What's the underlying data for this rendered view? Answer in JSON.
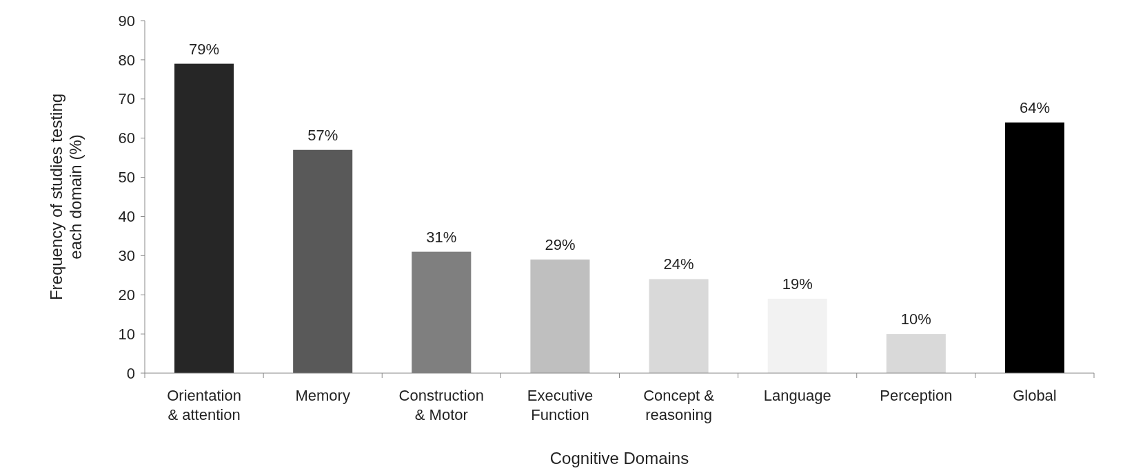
{
  "chart_data": {
    "type": "bar",
    "xlabel": "Cognitive Domains",
    "ylabel": "Frequency of studies testing each domain (%)",
    "categories": [
      "Orientation & attention",
      "Memory",
      "Construction & Motor",
      "Executive Function",
      "Concept & reasoning",
      "Language",
      "Perception",
      "Global"
    ],
    "values": [
      79,
      57,
      31,
      29,
      24,
      19,
      10,
      64
    ],
    "colors": [
      "#262626",
      "#595959",
      "#7f7f7f",
      "#bfbfbf",
      "#d9d9d9",
      "#f2f2f2",
      "#d9d9d9",
      "#000000"
    ],
    "value_labels": [
      "79%",
      "57%",
      "31%",
      "29%",
      "24%",
      "19%",
      "10%",
      "64%"
    ],
    "ylim": [
      0,
      90
    ],
    "yticks": [
      0,
      10,
      20,
      30,
      40,
      50,
      60,
      70,
      80,
      90
    ],
    "grid": false
  }
}
